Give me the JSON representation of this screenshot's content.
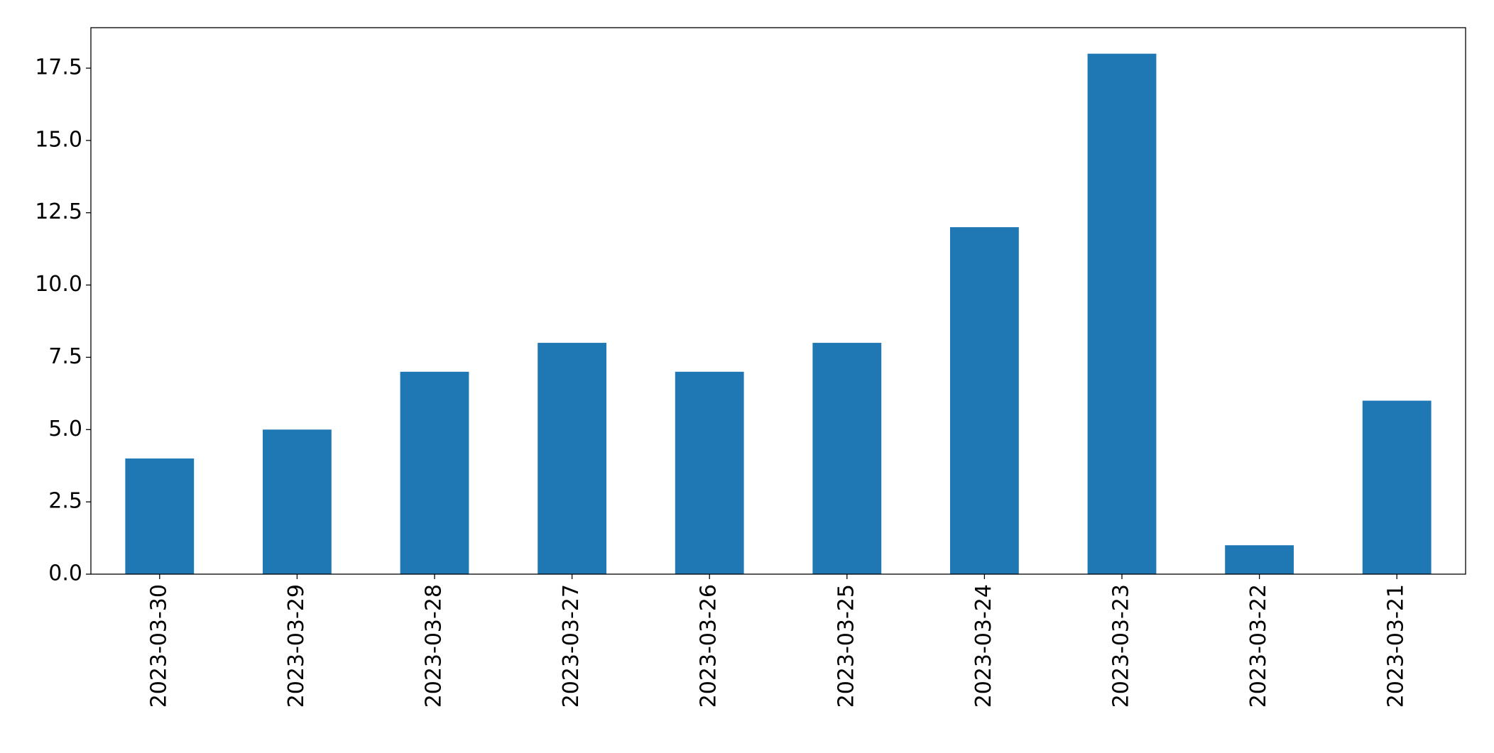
{
  "chart_data": {
    "type": "bar",
    "categories": [
      "2023-03-30",
      "2023-03-29",
      "2023-03-28",
      "2023-03-27",
      "2023-03-26",
      "2023-03-25",
      "2023-03-24",
      "2023-03-23",
      "2023-03-22",
      "2023-03-21"
    ],
    "values": [
      4,
      5,
      7,
      8,
      7,
      8,
      12,
      18,
      1,
      6
    ],
    "color": "#1f77b4",
    "ylim": [
      0,
      18.9
    ],
    "yticks": [
      {
        "value": 0,
        "label": "0.0"
      },
      2.5,
      {
        "value": 5,
        "label": "5.0"
      },
      7.5,
      {
        "value": 10,
        "label": "10.0"
      },
      12.5,
      {
        "value": 15,
        "label": "15.0"
      },
      17.5
    ],
    "grid": false
  }
}
